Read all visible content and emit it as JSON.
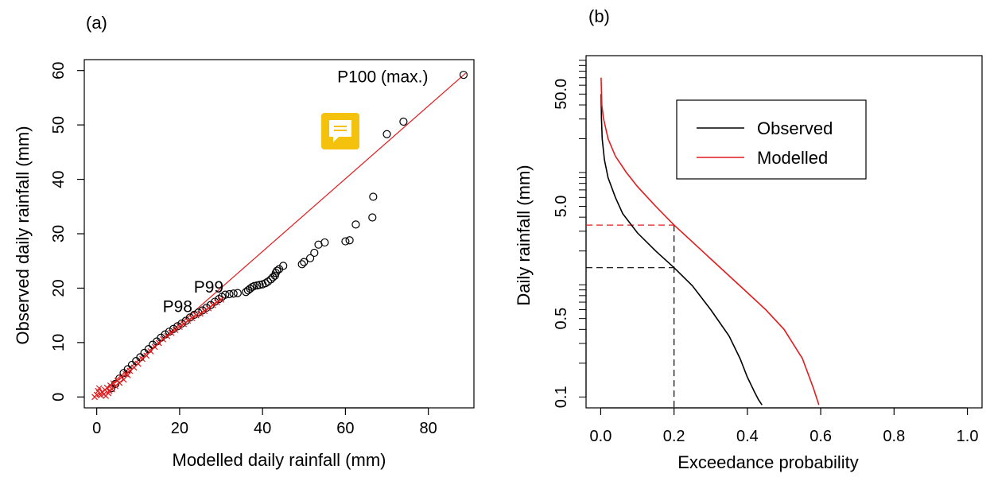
{
  "chart_data": [
    {
      "panel_label": "(a)",
      "type": "scatter",
      "xlabel": "Modelled daily rainfall (mm)",
      "ylabel": "Observed daily rainfall (mm)",
      "xlim": [
        -3,
        91
      ],
      "ylim": [
        -2,
        62
      ],
      "xticks": [
        0,
        20,
        40,
        60,
        80
      ],
      "yticks": [
        0,
        10,
        20,
        30,
        40,
        50,
        60
      ],
      "grid": false,
      "reference_line": {
        "from": [
          0,
          0
        ],
        "to": [
          89,
          59.5
        ],
        "color": "#e41a1c"
      },
      "annotations": [
        {
          "text": "P100 (max.)",
          "x": 69,
          "y": 57.8
        },
        {
          "text": "P99",
          "x": 27,
          "y": 19.2
        },
        {
          "text": "P98",
          "x": 19.5,
          "y": 15.6
        }
      ],
      "series": [
        {
          "marker": "circle",
          "color": "#000000",
          "points": [
            [
              31,
              18.8
            ],
            [
              32,
              18.9
            ],
            [
              33,
              19
            ],
            [
              34,
              19.1
            ],
            [
              36,
              19.3
            ],
            [
              36.5,
              19.6
            ],
            [
              37,
              19.9
            ],
            [
              37.5,
              20.2
            ],
            [
              38,
              20.4
            ],
            [
              38.7,
              20.5
            ],
            [
              39.3,
              20.6
            ],
            [
              40,
              20.7
            ],
            [
              40.7,
              20.9
            ],
            [
              41.3,
              21.2
            ],
            [
              42,
              21.6
            ],
            [
              42.5,
              22
            ],
            [
              43,
              22.3
            ],
            [
              43.2,
              22.8
            ],
            [
              43.5,
              23.2
            ],
            [
              44,
              23.5
            ],
            [
              45,
              24.1
            ],
            [
              49.5,
              24.4
            ],
            [
              50,
              24.8
            ],
            [
              51.5,
              25.5
            ],
            [
              52.5,
              26.5
            ],
            [
              53.5,
              28
            ],
            [
              55,
              28.4
            ],
            [
              60,
              28.6
            ],
            [
              61,
              28.8
            ],
            [
              62.5,
              31.7
            ],
            [
              66.5,
              33
            ],
            [
              66.7,
              36.8
            ],
            [
              70,
              48.3
            ],
            [
              74,
              50.6
            ],
            [
              88.5,
              59.2
            ]
          ]
        },
        {
          "marker": "circle",
          "color": "#000000",
          "points": [
            [
              3.5,
              1.6
            ],
            [
              4.5,
              2.4
            ],
            [
              5.5,
              3.4
            ],
            [
              6.5,
              4.4
            ],
            [
              7.5,
              5.1
            ],
            [
              8.5,
              5.9
            ],
            [
              9.5,
              6.6
            ],
            [
              10.5,
              7.3
            ],
            [
              11.5,
              8.1
            ],
            [
              12.5,
              8.8
            ],
            [
              13.5,
              9.6
            ],
            [
              14.5,
              10.2
            ],
            [
              15.5,
              10.9
            ],
            [
              16.5,
              11.5
            ],
            [
              17.5,
              12
            ],
            [
              18.5,
              12.5
            ],
            [
              19.5,
              13
            ],
            [
              20.5,
              13.5
            ],
            [
              21.5,
              14
            ],
            [
              22.5,
              14.6
            ],
            [
              23.5,
              15.1
            ],
            [
              24.5,
              15.5
            ],
            [
              25.5,
              15.9
            ],
            [
              26.5,
              16.4
            ],
            [
              27.5,
              16.9
            ],
            [
              28.5,
              17.5
            ],
            [
              29.5,
              18
            ],
            [
              30.2,
              18.4
            ]
          ]
        },
        {
          "marker": "cross",
          "color": "#e41a1c",
          "points": [
            [
              -0.5,
              0
            ],
            [
              0,
              0.4
            ],
            [
              0.3,
              1.1
            ],
            [
              0.6,
              1.6
            ],
            [
              1,
              0.3
            ],
            [
              1.3,
              0.9
            ],
            [
              1.7,
              0.5
            ],
            [
              2,
              1.3
            ],
            [
              2.2,
              0.2
            ],
            [
              2.5,
              1.7
            ],
            [
              2.8,
              0.7
            ],
            [
              3,
              1.1
            ],
            [
              3.3,
              2.1
            ],
            [
              3.7,
              1.4
            ],
            [
              4,
              2.5
            ],
            [
              4.5,
              2
            ],
            [
              5,
              3
            ],
            [
              5.5,
              2.6
            ],
            [
              6,
              3.6
            ],
            [
              6.5,
              3.2
            ],
            [
              7,
              4.2
            ],
            [
              7.5,
              4
            ],
            [
              8,
              4.8
            ],
            [
              9,
              5.4
            ],
            [
              10,
              6.1
            ],
            [
              11,
              7
            ],
            [
              12,
              7.6
            ],
            [
              13,
              8.4
            ],
            [
              14,
              9.2
            ],
            [
              15,
              9.9
            ],
            [
              16,
              10.6
            ],
            [
              17,
              11.2
            ],
            [
              18,
              11.8
            ],
            [
              19,
              12.3
            ],
            [
              20,
              12.9
            ],
            [
              21,
              13.4
            ],
            [
              22,
              14
            ],
            [
              23,
              14.5
            ],
            [
              24,
              15
            ],
            [
              25,
              15.3
            ],
            [
              26,
              15.8
            ],
            [
              27,
              16.3
            ],
            [
              28,
              16.9
            ],
            [
              29,
              17.4
            ],
            [
              30,
              17.9
            ]
          ]
        }
      ]
    },
    {
      "panel_label": "(b)",
      "type": "line",
      "xlabel": "Exceedance probability",
      "ylabel": "Daily rainfall (mm)",
      "xlim": [
        -0.04,
        1.04
      ],
      "ylim": [
        0.08,
        110
      ],
      "yscale": "log",
      "xticks": [
        "0.0",
        "0.2",
        "0.4",
        "0.6",
        "0.8",
        "1.0"
      ],
      "yticks": [
        "0.1",
        "0.5",
        "5.0",
        "50.0"
      ],
      "grid": false,
      "legend": {
        "placement": "top-center",
        "entries": [
          {
            "label": "Observed",
            "color": "#000000"
          },
          {
            "label": "Modelled",
            "color": "#e41a1c"
          }
        ]
      },
      "reference_lines": [
        {
          "color": "#000000",
          "style": "dashed",
          "x": 0.2,
          "y": 1.42
        },
        {
          "color": "#e41a1c",
          "style": "dashed",
          "x": 0.2,
          "y": 3.4
        }
      ],
      "series": [
        {
          "name": "Observed",
          "color": "#000000",
          "points": [
            [
              0.001,
              50
            ],
            [
              0.002,
              30
            ],
            [
              0.004,
              20
            ],
            [
              0.01,
              13
            ],
            [
              0.02,
              9
            ],
            [
              0.04,
              6
            ],
            [
              0.06,
              4.3
            ],
            [
              0.1,
              2.9
            ],
            [
              0.15,
              2
            ],
            [
              0.2,
              1.42
            ],
            [
              0.25,
              0.98
            ],
            [
              0.3,
              0.6
            ],
            [
              0.35,
              0.35
            ],
            [
              0.38,
              0.22
            ],
            [
              0.4,
              0.15
            ],
            [
              0.42,
              0.11
            ],
            [
              0.43,
              0.095
            ],
            [
              0.44,
              0.085
            ]
          ]
        },
        {
          "name": "Modelled",
          "color": "#e41a1c",
          "points": [
            [
              0.001,
              70
            ],
            [
              0.003,
              40
            ],
            [
              0.008,
              30
            ],
            [
              0.02,
              20
            ],
            [
              0.04,
              14
            ],
            [
              0.07,
              10
            ],
            [
              0.1,
              7.5
            ],
            [
              0.15,
              5
            ],
            [
              0.2,
              3.4
            ],
            [
              0.3,
              1.7
            ],
            [
              0.4,
              0.85
            ],
            [
              0.45,
              0.6
            ],
            [
              0.5,
              0.4
            ],
            [
              0.55,
              0.22
            ],
            [
              0.58,
              0.12
            ],
            [
              0.595,
              0.085
            ]
          ]
        }
      ]
    }
  ],
  "overlay": {
    "icon": "comment-icon",
    "color": "#f4c20d"
  }
}
